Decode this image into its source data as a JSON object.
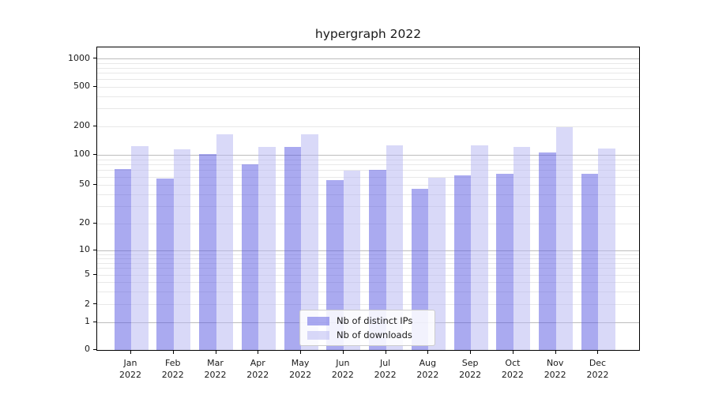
{
  "chart_data": {
    "type": "bar",
    "title": "hypergraph 2022",
    "categories": [
      "Jan",
      "Feb",
      "Mar",
      "Apr",
      "May",
      "Jun",
      "Jul",
      "Aug",
      "Sep",
      "Oct",
      "Nov",
      "Dec"
    ],
    "x_year": "2022",
    "series": [
      {
        "name": "Nb of distinct IPs",
        "color": "rgba(85,85,225,0.5)",
        "values": [
          72,
          58,
          103,
          81,
          121,
          56,
          71,
          46,
          62,
          65,
          107,
          65
        ]
      },
      {
        "name": "Nb of downloads",
        "color": "rgba(180,180,242,0.5)",
        "values": [
          124,
          115,
          165,
          122,
          165,
          70,
          127,
          59,
          127,
          121,
          195,
          118
        ]
      }
    ],
    "yscale": "symlog",
    "y_ticks": [
      0,
      1,
      2,
      5,
      10,
      20,
      50,
      100,
      200,
      500,
      1000
    ],
    "ylim": [
      0,
      1400
    ],
    "grid": true,
    "legend_position": "lower center inside"
  },
  "colors": {
    "grid_minor": "#e8e8e8",
    "grid_major": "#bdbdbd",
    "axis": "#000000",
    "text": "#1a1a1a",
    "legend_border": "#cccccc"
  }
}
